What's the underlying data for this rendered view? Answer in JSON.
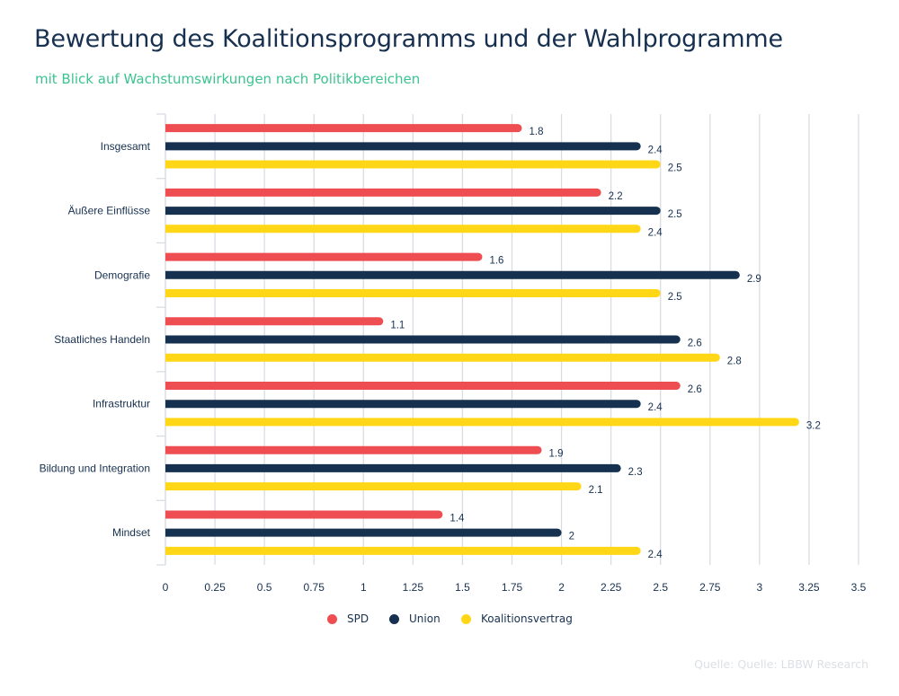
{
  "header": {
    "title": "Bewertung des Koalitionsprogramms und der Wahlprogramme",
    "subtitle": "mit Blick auf Wachstumswirkungen nach Politikbereichen"
  },
  "footer": {
    "source": "Quelle: Quelle: LBBW Research"
  },
  "colors": {
    "title": "#17304f",
    "subtitle": "#3cc391",
    "grid": "#d9dde3",
    "text": "#17304f"
  },
  "chart_data": {
    "type": "bar",
    "orientation": "horizontal",
    "title": "Bewertung des Koalitionsprogramms und der Wahlprogramme",
    "subtitle": "mit Blick auf Wachstumswirkungen nach Politikbereichen",
    "xlabel": "",
    "ylabel": "",
    "xlim": [
      0,
      3.5
    ],
    "grid": true,
    "legend_position": "bottom-center",
    "categories": [
      "Insgesamt",
      "Äußere Einflüsse",
      "Demografie",
      "Staatliches Handeln",
      "Infrastruktur",
      "Bildung und Integration",
      "Mindset"
    ],
    "x_ticks": [
      0,
      0.25,
      0.5,
      0.75,
      1,
      1.25,
      1.5,
      1.75,
      2,
      2.25,
      2.5,
      2.75,
      3,
      3.25,
      3.5
    ],
    "x_tick_labels": [
      "0",
      "0.25",
      "0.5",
      "0.75",
      "1",
      "1.25",
      "1.5",
      "1.75",
      "2",
      "2.25",
      "2.5",
      "2.75",
      "3",
      "3.25",
      "3.5"
    ],
    "series": [
      {
        "name": "SPD",
        "color": "#ee4e51",
        "values": [
          1.8,
          2.2,
          1.6,
          1.1,
          2.6,
          1.9,
          1.4
        ],
        "labels": [
          "1.8",
          "2.2",
          "1.6",
          "1.1",
          "2.6",
          "1.9",
          "1.4"
        ]
      },
      {
        "name": "Union",
        "color": "#16304f",
        "values": [
          2.4,
          2.5,
          2.9,
          2.6,
          2.4,
          2.3,
          2.0
        ],
        "labels": [
          "2.4",
          "2.5",
          "2.9",
          "2.6",
          "2.4",
          "2.3",
          "2"
        ]
      },
      {
        "name": "Koalitionsvertrag",
        "color": "#ffd716",
        "values": [
          2.5,
          2.4,
          2.5,
          2.8,
          3.2,
          2.1,
          2.4
        ],
        "labels": [
          "2.5",
          "2.4",
          "2.5",
          "2.8",
          "3.2",
          "2.1",
          "2.4"
        ]
      }
    ],
    "source": "Quelle: Quelle: LBBW Research"
  }
}
